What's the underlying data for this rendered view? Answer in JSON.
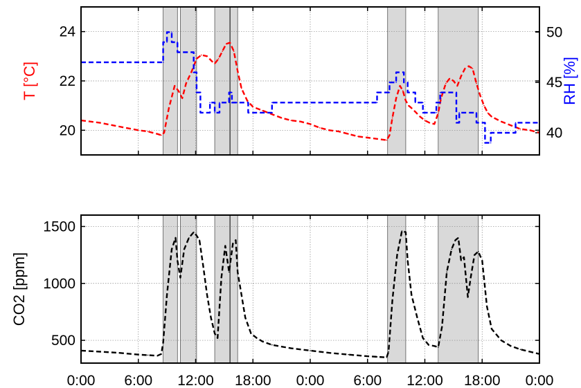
{
  "chart_data": [
    {
      "type": "line",
      "title": "",
      "x_tick_labels": [
        "0:00",
        "6:00",
        "12:00",
        "18:00",
        "0:00",
        "6:00",
        "12:00",
        "18:00",
        "0:00"
      ],
      "x_ticks_hours": [
        0,
        6,
        12,
        18,
        24,
        30,
        36,
        42,
        48
      ],
      "xlim_hours": [
        0,
        48
      ],
      "grid": true,
      "occupancy_periods_hours": [
        [
          8.6,
          10.1
        ],
        [
          10.4,
          12.1
        ],
        [
          14.0,
          16.4
        ],
        [
          32.1,
          34.0
        ],
        [
          37.4,
          41.6
        ]
      ],
      "extra_vertical_lines_hours": [
        15.6
      ],
      "y_left": {
        "label": "T [°C]",
        "color": "#ff0000",
        "ylim": [
          19,
          25
        ],
        "ticks": [
          20,
          22,
          24
        ]
      },
      "y_right": {
        "label": "RH [%]",
        "color": "#0000ff",
        "ylim": [
          37.8,
          52.5
        ],
        "ticks": [
          40,
          45,
          50
        ]
      },
      "series": [
        {
          "axis": "left",
          "color": "#ff0000",
          "x": [
            0,
            2,
            4,
            6,
            7,
            8,
            8.4,
            8.7,
            9.2,
            9.8,
            10.2,
            10.6,
            11.0,
            11.6,
            12.1,
            12.6,
            13.2,
            13.7,
            14.0,
            14.4,
            14.8,
            15.2,
            15.6,
            16.0,
            16.4,
            16.8,
            17.4,
            18.0,
            19,
            20,
            21,
            22,
            23,
            24,
            25,
            26,
            27,
            28,
            29,
            30,
            31,
            32.0,
            32.3,
            32.6,
            33.0,
            33.4,
            33.7,
            34.0,
            34.3,
            34.6,
            35.0,
            35.5,
            36.0,
            36.5,
            37.0,
            37.4,
            37.7,
            38.2,
            38.6,
            39.0,
            39.4,
            39.8,
            40.2,
            40.6,
            41.0,
            41.4,
            41.8,
            42.2,
            42.6,
            43,
            44,
            45,
            46,
            47,
            48
          ],
          "y": [
            20.4,
            20.3,
            20.15,
            20.0,
            19.95,
            19.85,
            19.8,
            19.9,
            20.9,
            21.8,
            21.6,
            21.3,
            21.9,
            22.4,
            22.9,
            23.05,
            23.0,
            22.8,
            22.7,
            22.9,
            23.2,
            23.5,
            23.55,
            23.2,
            22.4,
            21.7,
            21.2,
            20.95,
            20.8,
            20.65,
            20.5,
            20.4,
            20.35,
            20.25,
            20.1,
            20.0,
            19.95,
            19.85,
            19.75,
            19.7,
            19.65,
            19.6,
            19.8,
            20.5,
            21.3,
            21.8,
            21.6,
            21.2,
            21.0,
            20.9,
            20.75,
            20.55,
            20.4,
            20.3,
            20.25,
            20.7,
            21.3,
            21.9,
            22.1,
            22.0,
            21.8,
            22.2,
            22.5,
            22.6,
            22.5,
            21.9,
            21.4,
            21.0,
            20.7,
            20.55,
            20.35,
            20.2,
            20.05,
            20.0,
            19.9
          ]
        },
        {
          "axis": "right",
          "color": "#0000ff",
          "x": [
            0,
            8.6,
            8.6,
            9.0,
            9.0,
            9.5,
            9.5,
            10.1,
            10.1,
            11.8,
            11.8,
            12.1,
            12.1,
            12.5,
            12.5,
            13.5,
            13.5,
            14.0,
            14.0,
            14.5,
            14.5,
            15.5,
            15.5,
            15.8,
            15.8,
            16.3,
            16.3,
            17.5,
            17.5,
            18.0,
            18.0,
            20.0,
            20.0,
            31.0,
            31.0,
            32.3,
            32.3,
            33.0,
            33.0,
            33.8,
            33.8,
            34.2,
            34.2,
            35.0,
            35.0,
            35.8,
            35.8,
            37.2,
            37.2,
            37.6,
            37.6,
            39.3,
            39.3,
            39.6,
            39.6,
            41.4,
            41.4,
            42.3,
            42.3,
            42.9,
            42.9,
            45.5,
            45.5,
            48
          ],
          "y": [
            47,
            47,
            49,
            49,
            50,
            50,
            49,
            49,
            48,
            48,
            46,
            46,
            44,
            44,
            42,
            42,
            43,
            43,
            42,
            42,
            43,
            43,
            44,
            44,
            43,
            43,
            43,
            43,
            42,
            42,
            42,
            42,
            43,
            43,
            44,
            44,
            45,
            45,
            46,
            46,
            45,
            45,
            44,
            44,
            43,
            43,
            42,
            42,
            43,
            43,
            44,
            44,
            41,
            41,
            42,
            42,
            41,
            41,
            39,
            39,
            40,
            40,
            41,
            41
          ]
        }
      ]
    },
    {
      "type": "line",
      "title": "",
      "x_tick_labels": [
        "0:00",
        "6:00",
        "12:00",
        "18:00",
        "0:00",
        "6:00",
        "12:00",
        "18:00",
        "0:00"
      ],
      "x_ticks_hours": [
        0,
        6,
        12,
        18,
        24,
        30,
        36,
        42,
        48
      ],
      "xlim_hours": [
        0,
        48
      ],
      "grid": true,
      "occupancy_periods_hours": [
        [
          8.6,
          10.1
        ],
        [
          10.4,
          12.1
        ],
        [
          14.0,
          16.4
        ],
        [
          32.1,
          34.0
        ],
        [
          37.4,
          41.6
        ]
      ],
      "extra_vertical_lines_hours": [
        15.6
      ],
      "ylabel": "CO2 [ppm]",
      "ylim": [
        300,
        1600
      ],
      "y_ticks": [
        500,
        1000,
        1500
      ],
      "series": [
        {
          "color": "#000000",
          "x": [
            0,
            2,
            4,
            6,
            7,
            8,
            8.4,
            8.6,
            9.0,
            9.5,
            9.9,
            10.1,
            10.4,
            10.8,
            11.3,
            11.8,
            12.1,
            12.4,
            12.8,
            13.2,
            13.6,
            14.0,
            14.3,
            14.7,
            15.1,
            15.5,
            15.9,
            16.2,
            16.4,
            16.8,
            17.2,
            17.8,
            18.4,
            19,
            20,
            22,
            24,
            26,
            28,
            30,
            31,
            32.0,
            32.2,
            32.6,
            33.1,
            33.6,
            34.0,
            34.2,
            34.6,
            35.2,
            35.8,
            36.4,
            37.0,
            37.4,
            37.8,
            38.3,
            38.8,
            39.2,
            39.5,
            39.8,
            40.1,
            40.5,
            40.8,
            41.2,
            41.6,
            42.0,
            42.5,
            43.0,
            44,
            45,
            46,
            47,
            48
          ],
          "y": [
            410,
            400,
            390,
            375,
            370,
            365,
            380,
            480,
            900,
            1300,
            1400,
            1200,
            1050,
            1300,
            1400,
            1450,
            1420,
            1380,
            1150,
            900,
            700,
            560,
            520,
            1050,
            1330,
            1100,
            1350,
            1380,
            1100,
            900,
            700,
            560,
            520,
            490,
            460,
            430,
            410,
            390,
            375,
            360,
            355,
            350,
            400,
            850,
            1250,
            1460,
            1450,
            1200,
            900,
            700,
            520,
            460,
            450,
            440,
            620,
            1100,
            1300,
            1380,
            1400,
            1200,
            1230,
            880,
            1050,
            1250,
            1280,
            1200,
            800,
            600,
            500,
            450,
            420,
            400,
            380
          ]
        }
      ]
    }
  ]
}
